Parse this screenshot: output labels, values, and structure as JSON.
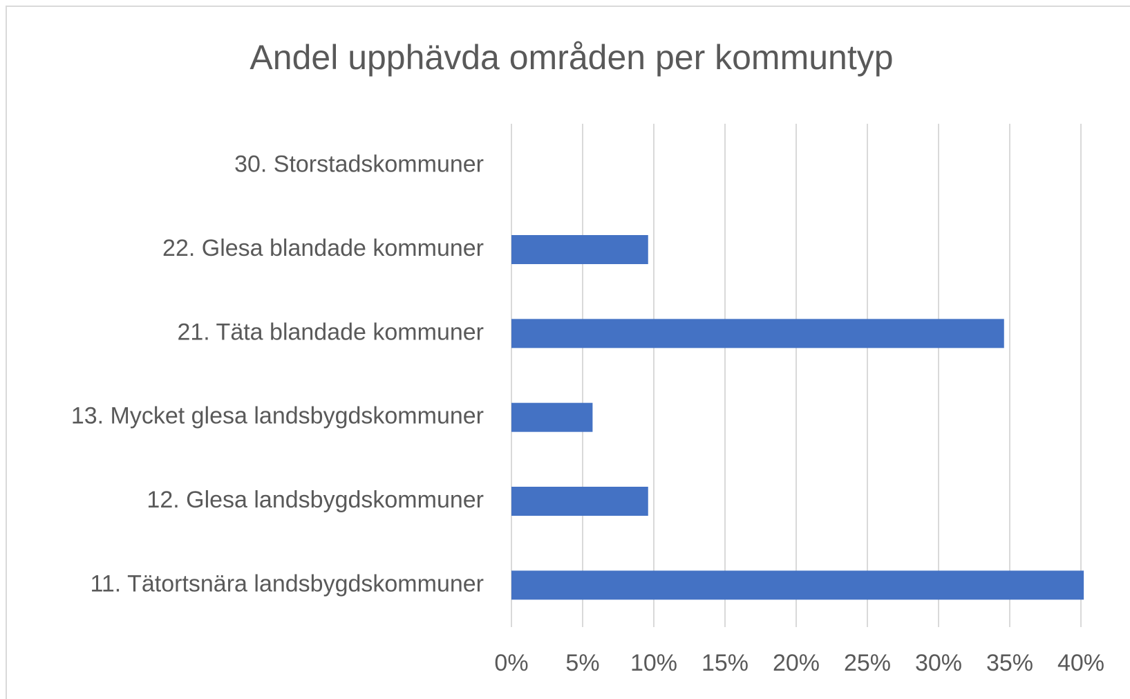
{
  "chart_data": {
    "type": "hbar",
    "title": "Andel upphävda områden per kommuntyp",
    "categories": [
      "30. Storstadskommuner",
      "22. Glesa blandade kommuner",
      "21. Täta blandade kommuner",
      "13. Mycket glesa landsbygdskommuner",
      "12. Glesa landsbygdskommuner",
      "11. Tätortsnära landsbygdskommuner"
    ],
    "values": [
      0,
      9.6,
      34.6,
      5.7,
      9.6,
      40.2
    ],
    "color": "#4472c4",
    "xlim": [
      0,
      40
    ],
    "xticks": [
      {
        "value": 0,
        "label": "0%"
      },
      {
        "value": 5,
        "label": "5%"
      },
      {
        "value": 10,
        "label": "10%"
      },
      {
        "value": 15,
        "label": "15%"
      },
      {
        "value": 20,
        "label": "20%"
      },
      {
        "value": 25,
        "label": "25%"
      },
      {
        "value": 30,
        "label": "30%"
      },
      {
        "value": 35,
        "label": "35%"
      },
      {
        "value": 40,
        "label": "40%"
      }
    ],
    "grid": true
  }
}
